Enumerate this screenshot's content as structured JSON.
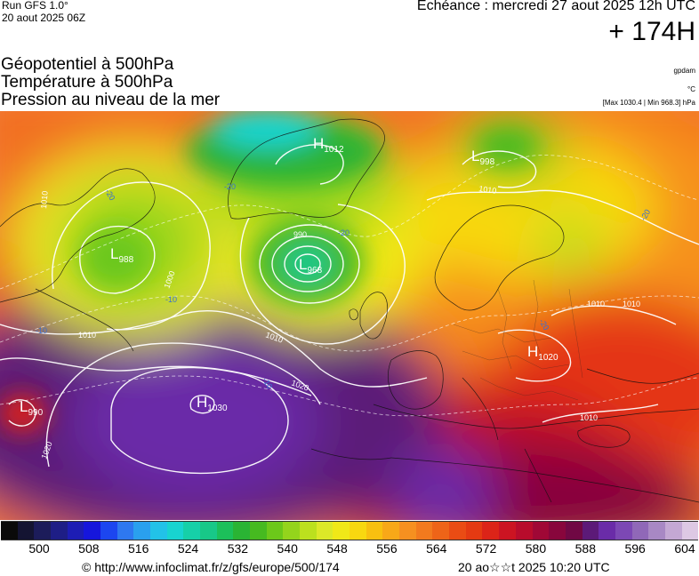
{
  "header": {
    "model": "Run GFS 1.0°",
    "run_date": "20 aout 2025 06Z",
    "echeance": "Echéance : mercredi 27 aout 2025 12h UTC",
    "lead_time": "+ 174H"
  },
  "parameters": [
    "Géopotentiel à 500hPa",
    "Température à 500hPa",
    "Pression au niveau de la mer"
  ],
  "units": {
    "geopotential": "gpdam",
    "temperature": "°C"
  },
  "pressure_range": "[Max 1030.4 | Min 968.3] hPa",
  "map": {
    "pressure_centers": [
      {
        "type": "H",
        "value": "1012"
      },
      {
        "type": "L",
        "value": "998"
      },
      {
        "type": "L",
        "value": "988"
      },
      {
        "type": "L",
        "value": "968"
      },
      {
        "type": "H",
        "value": "1020"
      },
      {
        "type": "L",
        "value": "990"
      },
      {
        "type": "H",
        "value": "1030"
      }
    ],
    "isobar_labels": [
      "1010",
      "1000",
      "990",
      "1010",
      "1010",
      "1010",
      "1020",
      "1020",
      "1010",
      "1010",
      "1010"
    ],
    "temperature_labels": [
      "-20",
      "-20",
      "-20",
      "-20",
      "-20",
      "-10",
      "-10",
      "-10"
    ]
  },
  "colorbar": {
    "colors": [
      "#0a0a0a",
      "#141432",
      "#1c1c5a",
      "#1e1e86",
      "#1d1db4",
      "#1616dc",
      "#1c46f0",
      "#2e78f0",
      "#2aa0ee",
      "#22c2e8",
      "#18d4d0",
      "#16d0a8",
      "#18c888",
      "#1cc05a",
      "#2ab434",
      "#46ba20",
      "#6cc81a",
      "#94d41c",
      "#bce01e",
      "#dce828",
      "#f0e818",
      "#f8d810",
      "#f8c010",
      "#f8a818",
      "#f69020",
      "#f27a1e",
      "#ee6418",
      "#ea4c14",
      "#e43a12",
      "#dc2418",
      "#cc1422",
      "#b80c2c",
      "#a00836",
      "#88063c",
      "#700844",
      "#5c1a78",
      "#6a2ca8",
      "#7c48b4",
      "#9068b8",
      "#a888c4",
      "#c4a8d4",
      "#ddc8e4"
    ],
    "ticks": [
      "500",
      "508",
      "516",
      "524",
      "532",
      "540",
      "548",
      "556",
      "564",
      "572",
      "580",
      "588",
      "596",
      "604"
    ]
  },
  "footer": {
    "source": "© http://www.infoclimat.fr/z/gfs/europe/500/174",
    "timestamp": "20 ao☆☆t 2025 10:20 UTC"
  }
}
